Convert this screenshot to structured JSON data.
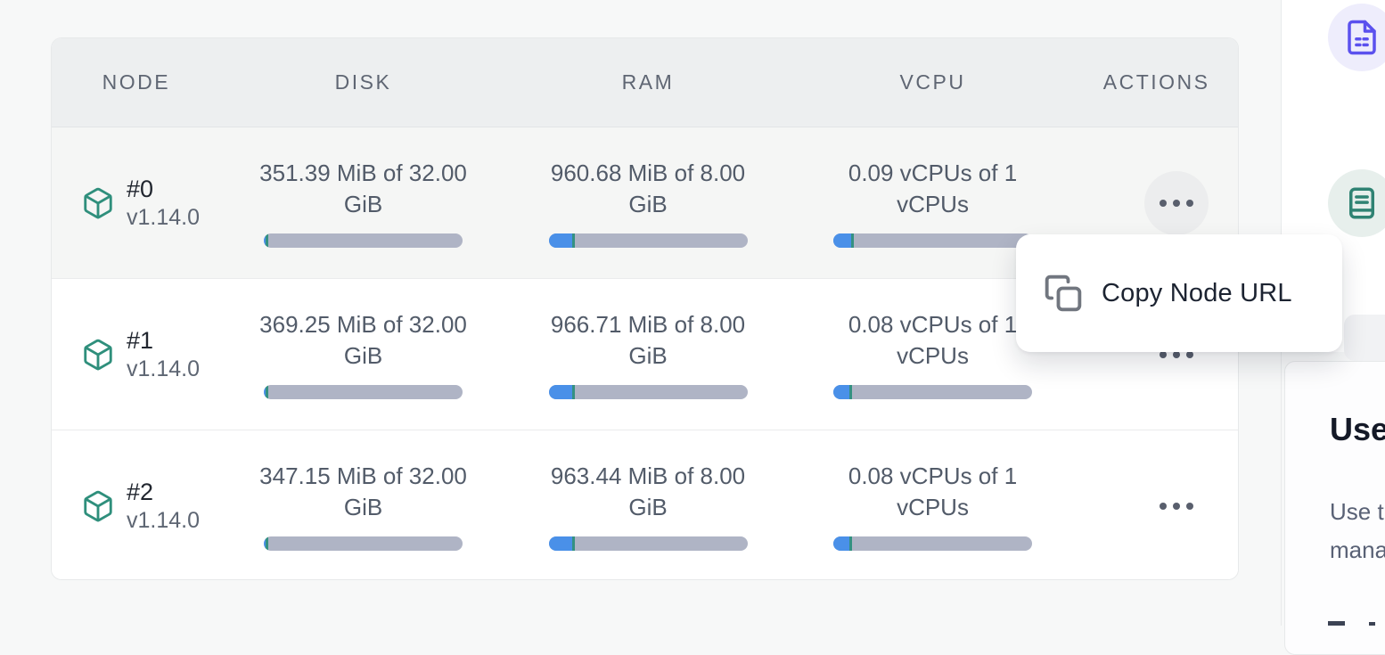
{
  "table": {
    "columns": [
      "NODE",
      "DISK",
      "RAM",
      "VCPU",
      "ACTIONS"
    ],
    "rows": [
      {
        "node_id": "#0",
        "version": "v1.14.0",
        "disk_line1": "351.39 MiB of 32.00",
        "disk_line2": "GiB",
        "disk_pct": 1.1,
        "ram_line1": "960.68 MiB of 8.00",
        "ram_line2": "GiB",
        "ram_pct": 11.7,
        "cpu_line1": "0.09 vCPUs of 1",
        "cpu_line2": "vCPUs",
        "cpu_pct": 9
      },
      {
        "node_id": "#1",
        "version": "v1.14.0",
        "disk_line1": "369.25 MiB of 32.00",
        "disk_line2": "GiB",
        "disk_pct": 1.1,
        "ram_line1": "966.71 MiB of 8.00",
        "ram_line2": "GiB",
        "ram_pct": 11.8,
        "cpu_line1": "0.08 vCPUs of 1",
        "cpu_line2": "vCPUs",
        "cpu_pct": 8
      },
      {
        "node_id": "#2",
        "version": "v1.14.0",
        "disk_line1": "347.15 MiB of 32.00",
        "disk_line2": "GiB",
        "disk_pct": 1.1,
        "ram_line1": "963.44 MiB of 8.00",
        "ram_line2": "GiB",
        "ram_pct": 11.8,
        "cpu_line1": "0.08 vCPUs of 1",
        "cpu_line2": "vCPUs",
        "cpu_pct": 8
      }
    ]
  },
  "context_menu": {
    "items": [
      {
        "label": "Copy Node URL",
        "icon": "copy-icon"
      }
    ]
  },
  "right_panel": {
    "icons": [
      "document-form-icon",
      "book-icon"
    ],
    "card": {
      "heading_fragment": "Use",
      "body_fragment_line1": "Use t",
      "body_fragment_line2": "mana"
    }
  },
  "colors": {
    "bar_fill_blue": "#4a90e8",
    "bar_marker_green": "#349182",
    "bar_track_gray": "#afb4c5",
    "node_icon_green": "#2f8f7c",
    "doc_icon_purple": "#5b51ee",
    "book_icon_green": "#2f8373",
    "header_bg": "#edeff0",
    "page_bg": "#f7f8f8"
  }
}
